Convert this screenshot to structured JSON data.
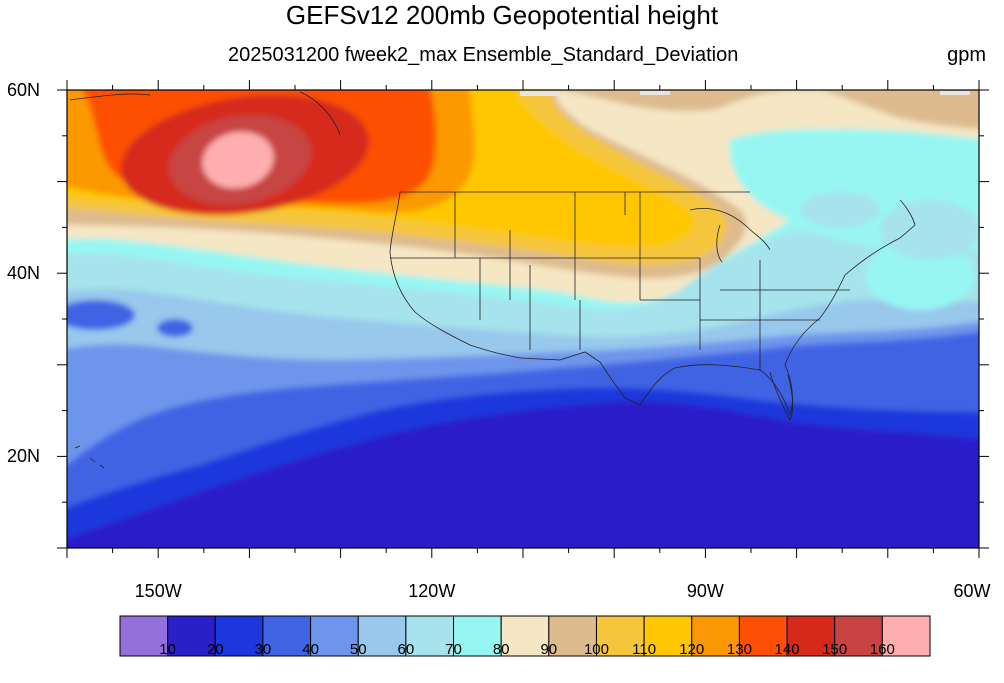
{
  "title": "GEFSv12 200mb Geopotential height",
  "subtitle": "2025031200 fweek2_max Ensemble_Standard_Deviation",
  "units": "gpm",
  "map": {
    "extent": {
      "lon_min": -160,
      "lon_max": -60,
      "lat_min": 10,
      "lat_max": 60
    },
    "lat_ticks": [
      {
        "value": 60,
        "label": "60N"
      },
      {
        "value": 40,
        "label": "40N"
      },
      {
        "value": 20,
        "label": "20N"
      }
    ],
    "lon_ticks": [
      {
        "value": -150,
        "label": "150W"
      },
      {
        "value": -120,
        "label": "120W"
      },
      {
        "value": -90,
        "label": "90W"
      },
      {
        "value": -60,
        "label": "60W"
      }
    ]
  },
  "colorbar": {
    "colors": [
      "#9370db",
      "#2b1fc9",
      "#1c37dc",
      "#4063e4",
      "#6e95ec",
      "#98c8ec",
      "#a6e3ec",
      "#98f6f2",
      "#f5e6c4",
      "#ddbb8e",
      "#f5c63c",
      "#fec704",
      "#fc9805",
      "#fd5004",
      "#d52a1a",
      "#c74443",
      "#feaeae"
    ],
    "labels": [
      "10",
      "20",
      "30",
      "40",
      "50",
      "60",
      "70",
      "80",
      "90",
      "100",
      "110",
      "120",
      "130",
      "140",
      "150",
      "160"
    ]
  }
}
